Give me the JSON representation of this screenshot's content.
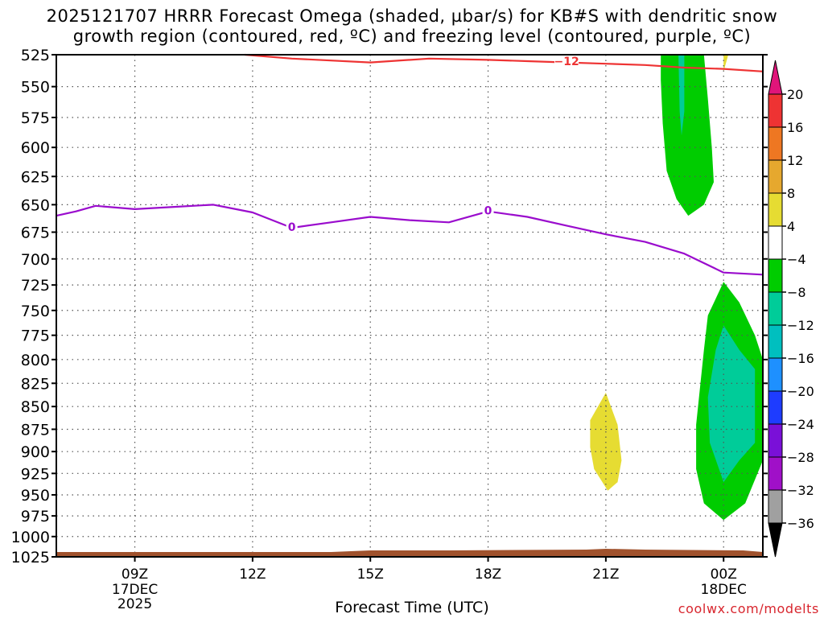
{
  "title": {
    "line1": "2025121707 HRRR Forecast Omega (shaded, µbar/s) for KB#S with dendritic snow",
    "line2": "growth region (contoured, red, ºC) and freezing level (contoured, purple, ºC)"
  },
  "credit": "coolwx.com/modelts",
  "colors": {
    "dgz_contour": "#ee3333",
    "freezing_contour": "#9a0ccd",
    "terrain": "#a0522d",
    "omega_neg4_to_neg8": "#00cc00",
    "omega_neg8_to_neg12": "#00cc99",
    "omega_4_to_8": "#e6dc32"
  },
  "chart_data": {
    "type": "heatmap",
    "xlabel": "Forecast Time (UTC)",
    "ylabel": "",
    "y_scale": "pressure (hPa), log-like",
    "ylim": [
      1025,
      525
    ],
    "xlim": [
      "2025-12-17 07Z",
      "2025-12-18 01Z"
    ],
    "x_ticks": [
      {
        "hour": 9,
        "label": "09Z",
        "sub1": "17DEC",
        "sub2": "2025"
      },
      {
        "hour": 12,
        "label": "12Z",
        "sub1": "",
        "sub2": ""
      },
      {
        "hour": 15,
        "label": "15Z",
        "sub1": "",
        "sub2": ""
      },
      {
        "hour": 18,
        "label": "18Z",
        "sub1": "",
        "sub2": ""
      },
      {
        "hour": 21,
        "label": "21Z",
        "sub1": "",
        "sub2": ""
      },
      {
        "hour": 24,
        "label": "00Z",
        "sub1": "18DEC",
        "sub2": ""
      }
    ],
    "y_ticks": [
      525,
      550,
      575,
      600,
      625,
      650,
      675,
      700,
      725,
      750,
      775,
      800,
      825,
      850,
      875,
      900,
      925,
      950,
      975,
      1000,
      1025
    ],
    "grid": true,
    "colorbar": {
      "labels": [
        "20",
        "16",
        "12",
        "8",
        "4",
        "-4",
        "-8",
        "-12",
        "-16",
        "-20",
        "-24",
        "-28",
        "-32",
        "-36"
      ],
      "colors": [
        "#ee3333",
        "#ee7722",
        "#e6a82e",
        "#e6dc32",
        "#ffffff",
        "#00cc00",
        "#00cc99",
        "#00bfbf",
        "#1e90ff",
        "#1e3cff",
        "#7a10d8",
        "#a010c8",
        "#a0a0a0"
      ],
      "top_arrow_color": "#e0157a",
      "bottom_arrow_color": "#000000"
    },
    "contours": [
      {
        "name": "dendritic snow growth region (red)",
        "label": "-12",
        "points": [
          [
            11.8,
            525
          ],
          [
            13,
            528
          ],
          [
            15,
            531
          ],
          [
            16.5,
            528
          ],
          [
            18,
            529
          ],
          [
            19,
            530
          ],
          [
            20,
            531
          ],
          [
            21,
            532
          ],
          [
            22,
            533
          ],
          [
            23,
            535
          ],
          [
            24,
            536
          ],
          [
            25,
            538
          ]
        ]
      },
      {
        "name": "freezing level (purple)",
        "label": "0",
        "points": [
          [
            7,
            660
          ],
          [
            7.5,
            656
          ],
          [
            8,
            651
          ],
          [
            9,
            654
          ],
          [
            10,
            652
          ],
          [
            11,
            650
          ],
          [
            12,
            657
          ],
          [
            13,
            671
          ],
          [
            14,
            666
          ],
          [
            15,
            661
          ],
          [
            16,
            664
          ],
          [
            17,
            666
          ],
          [
            18,
            656
          ],
          [
            19,
            661
          ],
          [
            20,
            669
          ],
          [
            21,
            677
          ],
          [
            22,
            684
          ],
          [
            23,
            695
          ],
          [
            24,
            713
          ],
          [
            25,
            715
          ]
        ]
      }
    ],
    "contour_labels": [
      {
        "text": "-12",
        "hour": 20.0,
        "pressure": 530
      },
      {
        "text": "0",
        "hour": 13.0,
        "pressure": 670
      },
      {
        "text": "0",
        "hour": 18.0,
        "pressure": 655
      }
    ],
    "shaded_regions": [
      {
        "range": "-4 to -8",
        "color_key": "omega_neg4_to_neg8",
        "points": [
          [
            22.4,
            525
          ],
          [
            23.5,
            525
          ],
          [
            23.6,
            560
          ],
          [
            23.7,
            600
          ],
          [
            23.75,
            630
          ],
          [
            23.5,
            650
          ],
          [
            23.1,
            660
          ],
          [
            22.8,
            645
          ],
          [
            22.55,
            620
          ],
          [
            22.45,
            580
          ],
          [
            22.4,
            545
          ]
        ]
      },
      {
        "range": "-8 to -12",
        "color_key": "omega_neg8_to_neg12",
        "points": [
          [
            22.85,
            525
          ],
          [
            23.0,
            525
          ],
          [
            23.0,
            570
          ],
          [
            22.93,
            590
          ],
          [
            22.88,
            570
          ]
        ]
      },
      {
        "range": "4 to 8",
        "color_key": "omega_4_to_8",
        "points": [
          [
            20.6,
            865
          ],
          [
            21.0,
            835
          ],
          [
            21.3,
            870
          ],
          [
            21.4,
            910
          ],
          [
            21.3,
            935
          ],
          [
            21.05,
            945
          ],
          [
            20.7,
            920
          ],
          [
            20.6,
            895
          ]
        ]
      },
      {
        "range": "4 to 8",
        "color_key": "omega_4_to_8",
        "points": [
          [
            24.0,
            525
          ],
          [
            24.12,
            525
          ],
          [
            24.0,
            538
          ]
        ]
      },
      {
        "range": "-4 to -8",
        "color_key": "omega_neg4_to_neg8",
        "points": [
          [
            24.0,
            722
          ],
          [
            24.4,
            742
          ],
          [
            24.8,
            775
          ],
          [
            25.0,
            800
          ],
          [
            25.0,
            910
          ],
          [
            24.55,
            960
          ],
          [
            24.0,
            980
          ],
          [
            23.5,
            960
          ],
          [
            23.3,
            920
          ],
          [
            23.3,
            870
          ],
          [
            23.5,
            790
          ],
          [
            23.6,
            755
          ]
        ]
      },
      {
        "range": "-8 to -12",
        "color_key": "omega_neg8_to_neg12",
        "points": [
          [
            24.0,
            765
          ],
          [
            24.4,
            790
          ],
          [
            24.8,
            810
          ],
          [
            24.8,
            890
          ],
          [
            24.4,
            910
          ],
          [
            24.0,
            935
          ],
          [
            23.65,
            890
          ],
          [
            23.6,
            840
          ],
          [
            23.8,
            790
          ]
        ]
      }
    ],
    "terrain": {
      "points": [
        [
          7,
          1019
        ],
        [
          14,
          1019
        ],
        [
          15,
          1017
        ],
        [
          17,
          1017
        ],
        [
          20.5,
          1016
        ],
        [
          21,
          1015
        ],
        [
          22,
          1016
        ],
        [
          24.5,
          1017
        ],
        [
          25,
          1019
        ]
      ]
    }
  }
}
